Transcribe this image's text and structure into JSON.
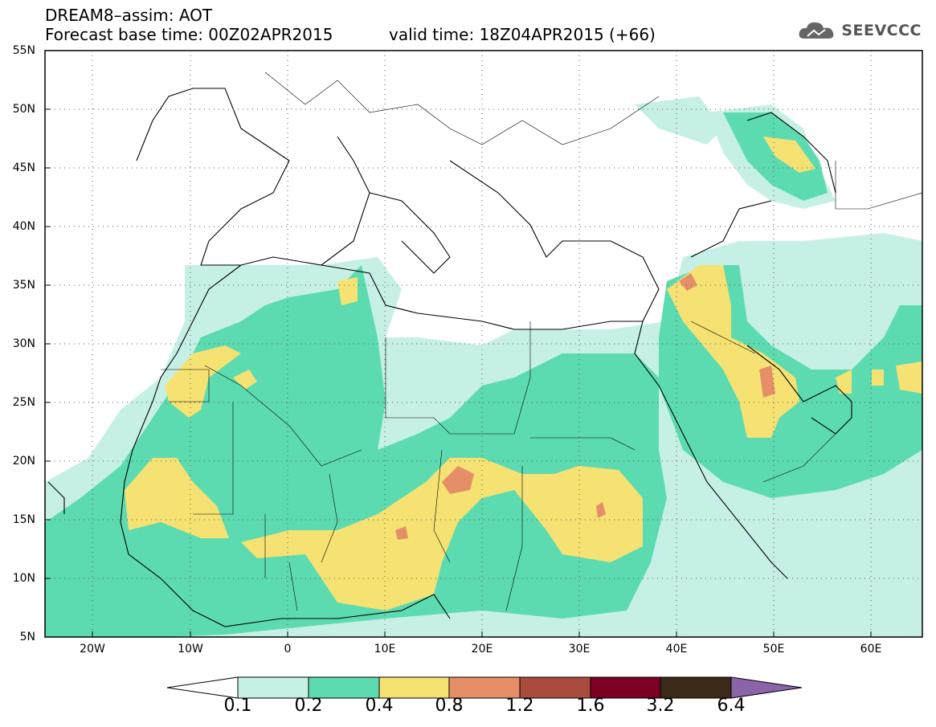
{
  "header": {
    "title": "DREAM8–assim: AOT",
    "base_time": "Forecast base time: 00Z02APR2015",
    "valid_time": "valid time: 18Z04APR2015 (+66)"
  },
  "brand": {
    "name": "SEEVCCC",
    "icon": "cloud-logo-icon"
  },
  "axes": {
    "lat_labels": [
      "55N",
      "50N",
      "45N",
      "40N",
      "35N",
      "30N",
      "25N",
      "20N",
      "15N",
      "10N",
      "5N"
    ],
    "lon_labels": [
      "20W",
      "10W",
      "0",
      "10E",
      "20E",
      "30E",
      "40E",
      "50E",
      "60E"
    ]
  },
  "colorbar": {
    "labels": [
      "0.1",
      "0.2",
      "0.4",
      "0.8",
      "1.2",
      "1.6",
      "3.2",
      "6.4"
    ],
    "colors": [
      "#ffffff",
      "#c6f0e6",
      "#5ddbb0",
      "#f5e273",
      "#e58e68",
      "#a94b3d",
      "#7d0023",
      "#3b2a18",
      "#8a63a8"
    ]
  }
}
